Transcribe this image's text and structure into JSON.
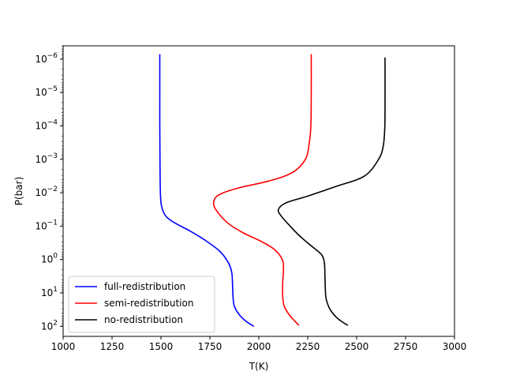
{
  "chart_data": {
    "type": "line",
    "xlabel": "T(K)",
    "ylabel": "P(bar)",
    "xlim": [
      1000,
      3000
    ],
    "ylim_log10": [
      2.3,
      -6.4
    ],
    "y_scale": "log",
    "y_inverted": true,
    "x_ticks": [
      1000,
      1250,
      1500,
      1750,
      2000,
      2250,
      2500,
      2750,
      3000
    ],
    "x_tick_labels": [
      "1000",
      "1250",
      "1500",
      "1750",
      "2000",
      "2250",
      "2500",
      "2750",
      "3000"
    ],
    "y_ticks": [
      {
        "base": "10",
        "exp": "2",
        "log10": 2
      },
      {
        "base": "10",
        "exp": "1",
        "log10": 1
      },
      {
        "base": "10",
        "exp": "0",
        "log10": 0
      },
      {
        "base": "10",
        "exp": "−1",
        "log10": -1
      },
      {
        "base": "10",
        "exp": "−2",
        "log10": -2
      },
      {
        "base": "10",
        "exp": "−3",
        "log10": -3
      },
      {
        "base": "10",
        "exp": "−4",
        "log10": -4
      },
      {
        "base": "10",
        "exp": "−5",
        "log10": -5
      },
      {
        "base": "10",
        "exp": "−6",
        "log10": -6
      }
    ],
    "legend_position": "lower-left",
    "series": [
      {
        "name": "full-redistribution",
        "color": "#0000ff",
        "points": [
          [
            1494,
            -6.15
          ],
          [
            1494,
            -5.0
          ],
          [
            1494,
            -4.0
          ],
          [
            1495,
            -3.0
          ],
          [
            1497,
            -2.0
          ],
          [
            1503,
            -1.6
          ],
          [
            1525,
            -1.3
          ],
          [
            1570,
            -1.1
          ],
          [
            1650,
            -0.85
          ],
          [
            1720,
            -0.6
          ],
          [
            1800,
            -0.25
          ],
          [
            1845,
            0.1
          ],
          [
            1862,
            0.4
          ],
          [
            1866,
            0.8
          ],
          [
            1868,
            1.1
          ],
          [
            1875,
            1.4
          ],
          [
            1900,
            1.65
          ],
          [
            1935,
            1.85
          ],
          [
            1975,
            2.0
          ]
        ]
      },
      {
        "name": "semi-redistribution",
        "color": "#ff0000",
        "points": [
          [
            2268,
            -6.15
          ],
          [
            2268,
            -5.0
          ],
          [
            2266,
            -4.0
          ],
          [
            2258,
            -3.5
          ],
          [
            2238,
            -3.0
          ],
          [
            2170,
            -2.6
          ],
          [
            2050,
            -2.35
          ],
          [
            1900,
            -2.15
          ],
          [
            1800,
            -1.95
          ],
          [
            1770,
            -1.75
          ],
          [
            1780,
            -1.5
          ],
          [
            1840,
            -1.1
          ],
          [
            1920,
            -0.8
          ],
          [
            2010,
            -0.55
          ],
          [
            2080,
            -0.3
          ],
          [
            2120,
            0.0
          ],
          [
            2126,
            0.3
          ],
          [
            2122,
            0.7
          ],
          [
            2122,
            1.1
          ],
          [
            2130,
            1.4
          ],
          [
            2155,
            1.65
          ],
          [
            2185,
            1.85
          ],
          [
            2205,
            1.97
          ]
        ]
      },
      {
        "name": "no-redistribution",
        "color": "#000000",
        "points": [
          [
            2645,
            -6.05
          ],
          [
            2645,
            -5.0
          ],
          [
            2644,
            -4.0
          ],
          [
            2636,
            -3.4
          ],
          [
            2612,
            -3.0
          ],
          [
            2540,
            -2.5
          ],
          [
            2400,
            -2.2
          ],
          [
            2250,
            -1.9
          ],
          [
            2140,
            -1.7
          ],
          [
            2100,
            -1.5
          ],
          [
            2115,
            -1.3
          ],
          [
            2160,
            -1.0
          ],
          [
            2210,
            -0.7
          ],
          [
            2270,
            -0.4
          ],
          [
            2320,
            -0.15
          ],
          [
            2335,
            0.1
          ],
          [
            2338,
            0.5
          ],
          [
            2340,
            0.9
          ],
          [
            2345,
            1.2
          ],
          [
            2365,
            1.5
          ],
          [
            2400,
            1.75
          ],
          [
            2430,
            1.88
          ],
          [
            2455,
            1.97
          ]
        ]
      }
    ]
  }
}
